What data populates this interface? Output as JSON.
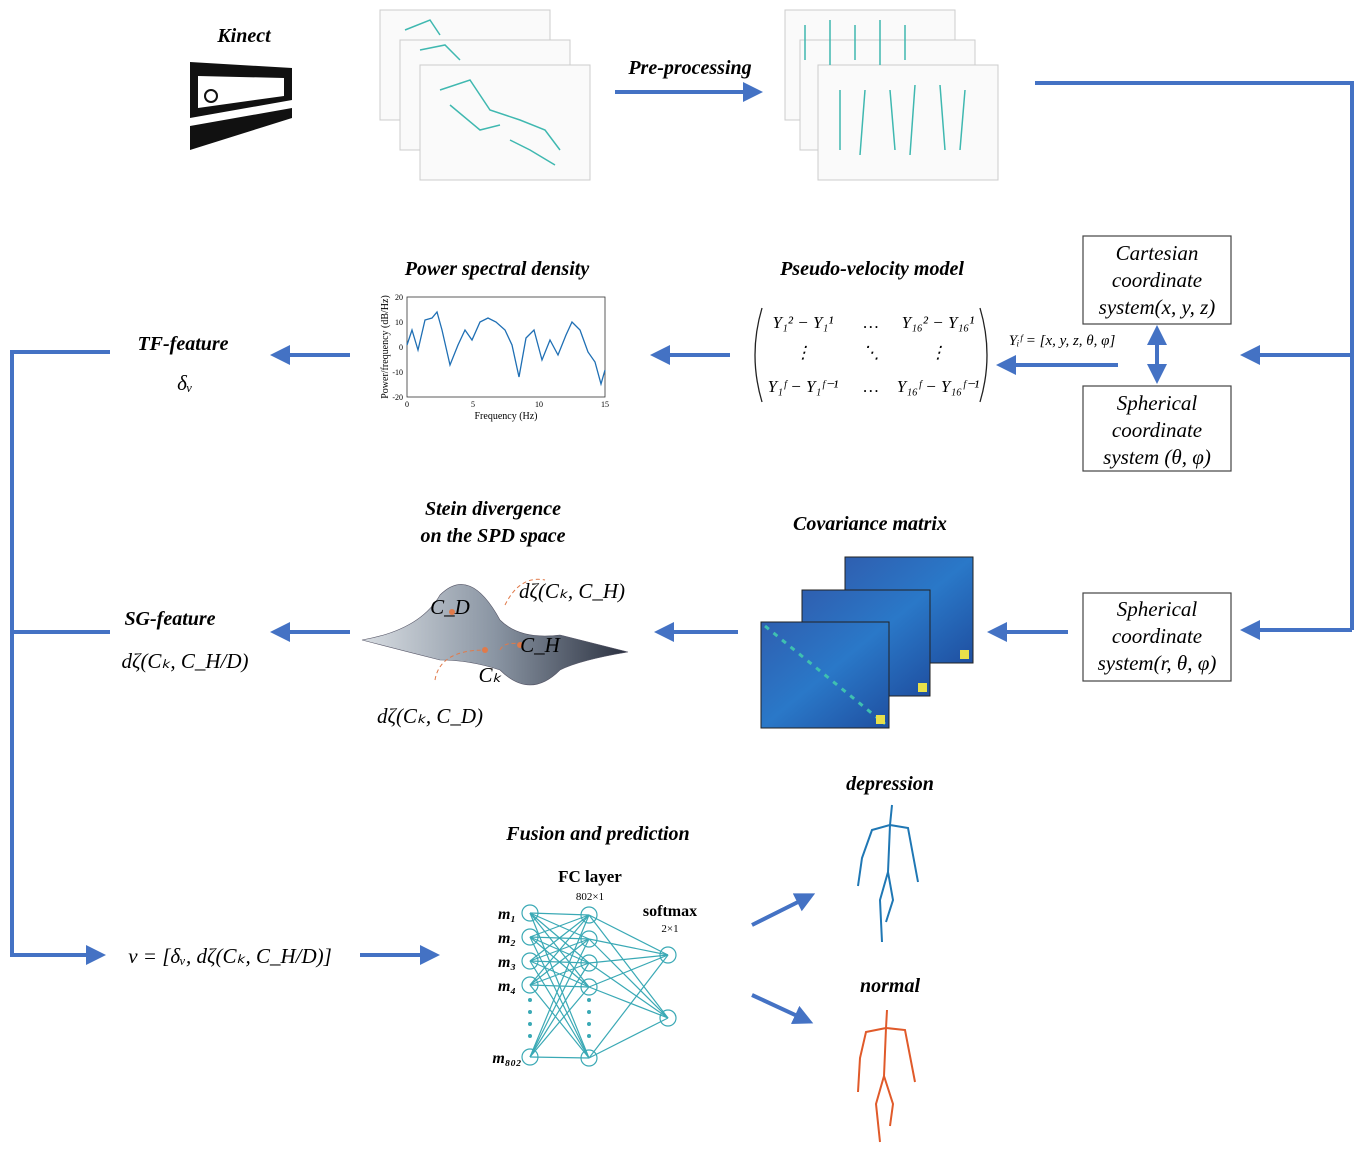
{
  "kinect": "Kinect",
  "preprocessing": "Pre-processing",
  "psd": {
    "title": "Power spectral density",
    "ylabel": "Power/frequency (dB/Hz)",
    "xlabel": "Frequency (Hz)",
    "yticks": [
      20,
      10,
      0,
      -10,
      -20
    ],
    "xticks": [
      0,
      5,
      10,
      15
    ]
  },
  "pseudo_velocity": {
    "title": "Pseudo-velocity model",
    "rows": [
      [
        "Y₁² − Y₁¹",
        "…",
        "Y₁₆² − Y₁₆¹"
      ],
      [
        "⋮",
        "⋱",
        "⋮"
      ],
      [
        "Y₁ᶠ − Y₁ᶠ⁻¹",
        "…",
        "Y₁₆ᶠ − Y₁₆ᶠ⁻¹"
      ]
    ]
  },
  "equation": "Yᵢᶠ = [x, y, z, θ, φ]",
  "cartesian_box": [
    "Cartesian",
    "coordinate",
    "system(x, y, z)"
  ],
  "spherical_box_1": [
    "Spherical",
    "coordinate",
    "system (θ, φ)"
  ],
  "spherical_box_2": [
    "Spherical",
    "coordinate",
    "system(r, θ, φ)"
  ],
  "tf_feature": {
    "label": "TF-feature",
    "symbol": "δᵥ"
  },
  "sg_feature": {
    "label": "SG-feature",
    "symbol": "dζ(Cₖ, C_H/D)"
  },
  "stein": {
    "title": [
      "Stein divergence",
      "on the SPD space"
    ],
    "d_h": "dζ(Cₖ, C_H)",
    "d_d": "dζ(Cₖ, C_D)",
    "c_d": "C_D",
    "c_h": "C_H",
    "c_k": "Cₖ"
  },
  "covariance": "Covariance matrix",
  "fusion_vector": "ν = [δᵥ, dζ(Cₖ, C_H/D)]",
  "fusion": {
    "title": "Fusion and prediction",
    "fc_layer": "FC layer",
    "fc_size": "802×1",
    "softmax": "softmax",
    "softmax_size": "2×1",
    "inputs": [
      "m₁",
      "m₂",
      "m₃",
      "m₄",
      "m₈₀₂"
    ]
  },
  "outputs": {
    "depression": "depression",
    "normal": "normal"
  }
}
